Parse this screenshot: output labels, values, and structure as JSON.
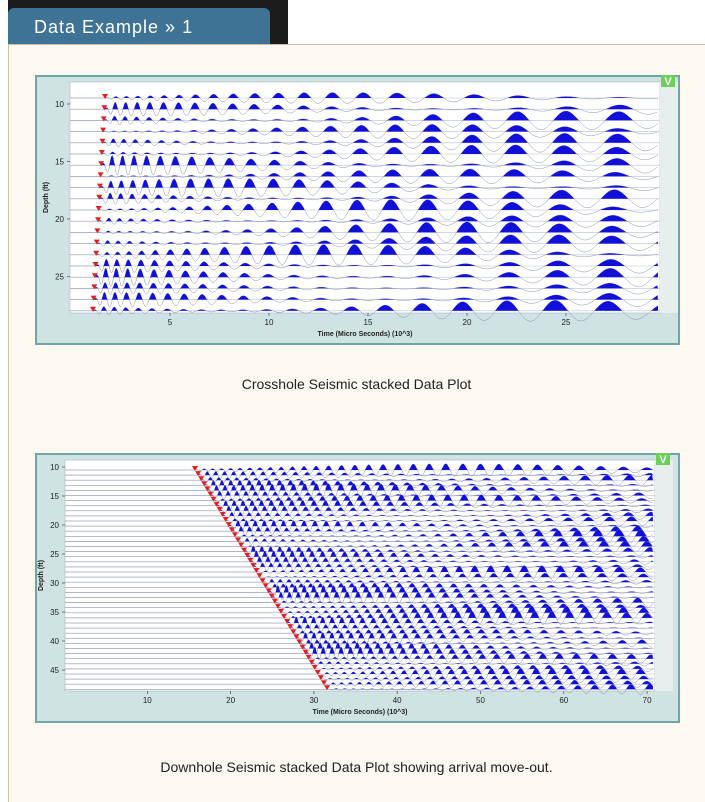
{
  "tab": {
    "title": "Data Example » 1"
  },
  "figures": [
    {
      "y_label": "Depth (ft)",
      "x_label": "Time (Micro Seconds) (10^3)",
      "badge": "V",
      "y_ticks": [
        10,
        15,
        20,
        25
      ],
      "x_ticks": [
        5,
        10,
        15,
        20,
        25
      ],
      "caption": "Crosshole Seismic stacked Data Plot"
    },
    {
      "y_label": "Depth (ft)",
      "x_label": "Time (Micro Seconds) (10^3)",
      "badge": "V",
      "y_ticks": [
        10,
        15,
        20,
        25,
        30,
        35,
        40,
        45
      ],
      "x_ticks": [
        10,
        20,
        30,
        40,
        50,
        60,
        70
      ],
      "caption": "Downhole Seismic stacked Data Plot showing arrival move-out."
    }
  ]
}
